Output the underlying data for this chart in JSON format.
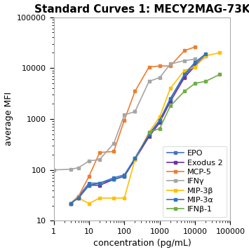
{
  "title": "Standard Curves 1: MECY2MAG-73K",
  "xlabel": "concentration (pg/mL)",
  "ylabel": "average MFI",
  "xlim": [
    1,
    100000
  ],
  "ylim": [
    10,
    100000
  ],
  "series": [
    {
      "label": "EPO",
      "color": "#4472C4",
      "marker": "s",
      "x": [
        3,
        5,
        10,
        20,
        50,
        100,
        200,
        500,
        1000,
        2000,
        5000,
        10000,
        20000
      ],
      "y": [
        22,
        30,
        55,
        55,
        70,
        80,
        170,
        500,
        900,
        2500,
        7000,
        12000,
        18000
      ]
    },
    {
      "label": "Exodus 2",
      "color": "#7030A0",
      "marker": "s",
      "x": [
        3,
        5,
        10,
        20,
        50,
        100,
        200,
        500,
        1000,
        2000,
        5000,
        10000,
        20000
      ],
      "y": [
        22,
        28,
        50,
        50,
        65,
        75,
        160,
        450,
        850,
        2200,
        6500,
        11000,
        17000
      ]
    },
    {
      "label": "MCP-5",
      "color": "#ED7D31",
      "marker": "s",
      "x": [
        3,
        5,
        10,
        20,
        50,
        100,
        200,
        500,
        1000,
        2000,
        5000,
        10000
      ],
      "y": [
        22,
        30,
        75,
        220,
        230,
        950,
        3500,
        10500,
        11000,
        11000,
        22000,
        26000
      ]
    },
    {
      "label": "IFNγ",
      "color": "#A5A5A5",
      "marker": "s",
      "x": [
        1,
        3,
        5,
        10,
        20,
        50,
        100,
        200,
        500,
        1000,
        2000,
        5000,
        10000
      ],
      "y": [
        100,
        103,
        110,
        150,
        160,
        330,
        1200,
        1400,
        5500,
        6500,
        12000,
        14000,
        15000
      ]
    },
    {
      "label": "MIP-3β",
      "color": "#FFC000",
      "marker": "s",
      "x": [
        3,
        5,
        10,
        20,
        50,
        100,
        200,
        500,
        1000,
        2000,
        5000,
        10000,
        20000,
        50000
      ],
      "y": [
        22,
        28,
        22,
        28,
        28,
        28,
        160,
        550,
        1100,
        4000,
        9000,
        10500,
        17500,
        20000
      ]
    },
    {
      "label": "MIP-3α",
      "color": "#2E75B6",
      "marker": "s",
      "x": [
        3,
        5,
        10,
        20,
        50,
        100,
        200,
        500,
        1000,
        2000,
        5000,
        10000,
        20000
      ],
      "y": [
        22,
        28,
        50,
        55,
        65,
        75,
        170,
        500,
        950,
        2500,
        7500,
        13000,
        19000
      ]
    },
    {
      "label": "IFNβ-1",
      "color": "#70AD47",
      "marker": "s",
      "x": [
        500,
        1000,
        2000,
        5000,
        10000,
        20000,
        50000
      ],
      "y": [
        550,
        650,
        1800,
        3500,
        5000,
        5500,
        7500
      ]
    }
  ],
  "background_color": "#ffffff",
  "plot_bg_color": "#ffffff",
  "border_color": "#aaaaaa",
  "title_fontsize": 11,
  "axis_label_fontsize": 9,
  "tick_label_fontsize": 8,
  "legend_fontsize": 8
}
